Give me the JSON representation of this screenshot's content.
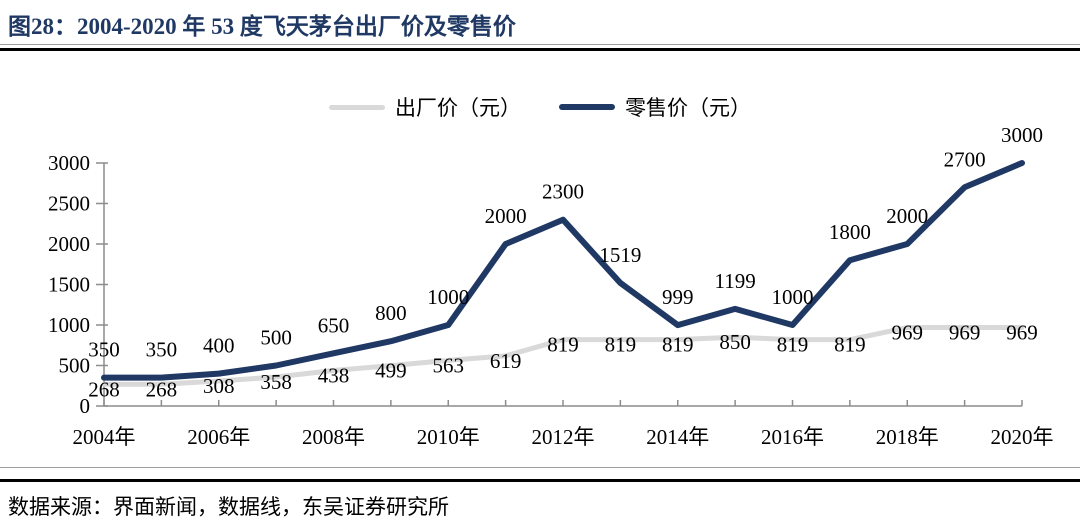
{
  "figure": {
    "title": "图28：2004-2020 年 53 度飞天茅台出厂价及零售价",
    "source": "数据来源：界面新闻，数据线，东吴证券研究所"
  },
  "colors": {
    "title_navy": "#1F3864",
    "factory_line_gray": "#D9D9D9",
    "retail_line_navy": "#1F3864",
    "axis_gray": "#8C8C8C"
  },
  "chart_data": {
    "type": "line",
    "title": "2004-2020 年 53 度飞天茅台出厂价及零售价",
    "x": [
      2004,
      2005,
      2006,
      2007,
      2008,
      2009,
      2010,
      2011,
      2012,
      2013,
      2014,
      2015,
      2016,
      2017,
      2018,
      2019,
      2020
    ],
    "x_tick_labels": [
      "2004年",
      "2006年",
      "2008年",
      "2010年",
      "2012年",
      "2014年",
      "2016年",
      "2018年",
      "2020年"
    ],
    "y_ticks": [
      0,
      500,
      1000,
      1500,
      2000,
      2500,
      3000
    ],
    "ylim": [
      0,
      3000
    ],
    "grid": false,
    "legend_position": "top",
    "series": [
      {
        "name": "出厂价（元）",
        "color": "#D9D9D9",
        "label_position": "below",
        "values": [
          268,
          268,
          308,
          358,
          438,
          499,
          563,
          619,
          819,
          819,
          819,
          850,
          819,
          819,
          969,
          969,
          969
        ]
      },
      {
        "name": "零售价（元）",
        "color": "#1F3864",
        "label_position": "above",
        "values": [
          350,
          350,
          400,
          500,
          650,
          800,
          1000,
          2000,
          2300,
          1519,
          999,
          1199,
          1000,
          1800,
          2000,
          2700,
          3000
        ]
      }
    ]
  }
}
